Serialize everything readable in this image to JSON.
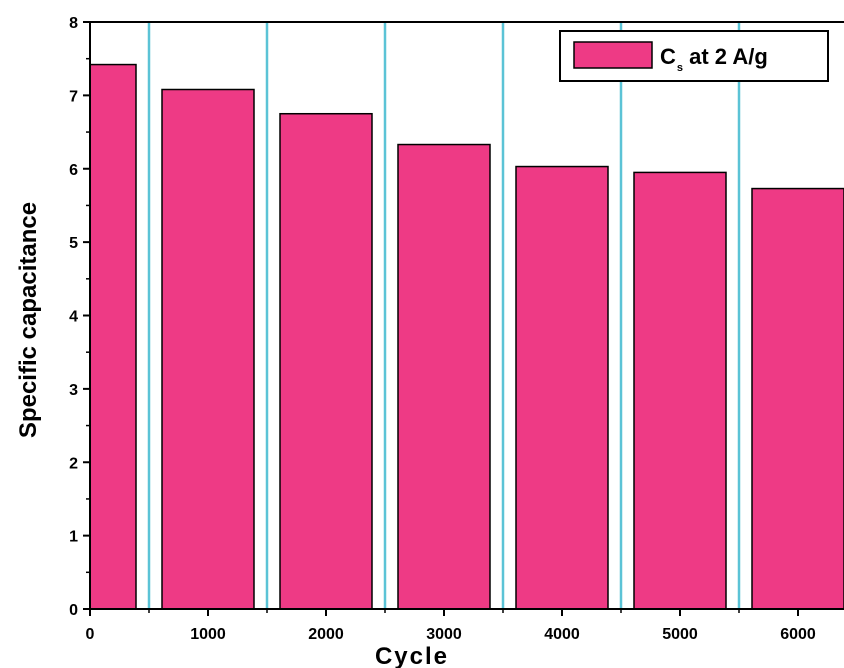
{
  "chart_data": {
    "type": "bar",
    "categories": [
      "0",
      "1000",
      "2000",
      "3000",
      "4000",
      "5000",
      "6000"
    ],
    "series": [
      {
        "name": "C_s at 2 A/g",
        "values": [
          7.42,
          7.08,
          6.75,
          6.33,
          6.03,
          5.95,
          5.73
        ],
        "color": "#ee3a85"
      }
    ],
    "xlabel": "Cycle",
    "ylabel": "Specific capacitance",
    "ylim": [
      0,
      8
    ],
    "yticks": [
      0,
      1,
      2,
      3,
      4,
      5,
      6,
      7,
      8
    ],
    "grid": "vertical separators between categories",
    "grid_color": "#5bc3d6",
    "legend": {
      "position": "top-right",
      "symbol": "C",
      "subscript": "s",
      "suffix": " at 2 A/g"
    }
  }
}
